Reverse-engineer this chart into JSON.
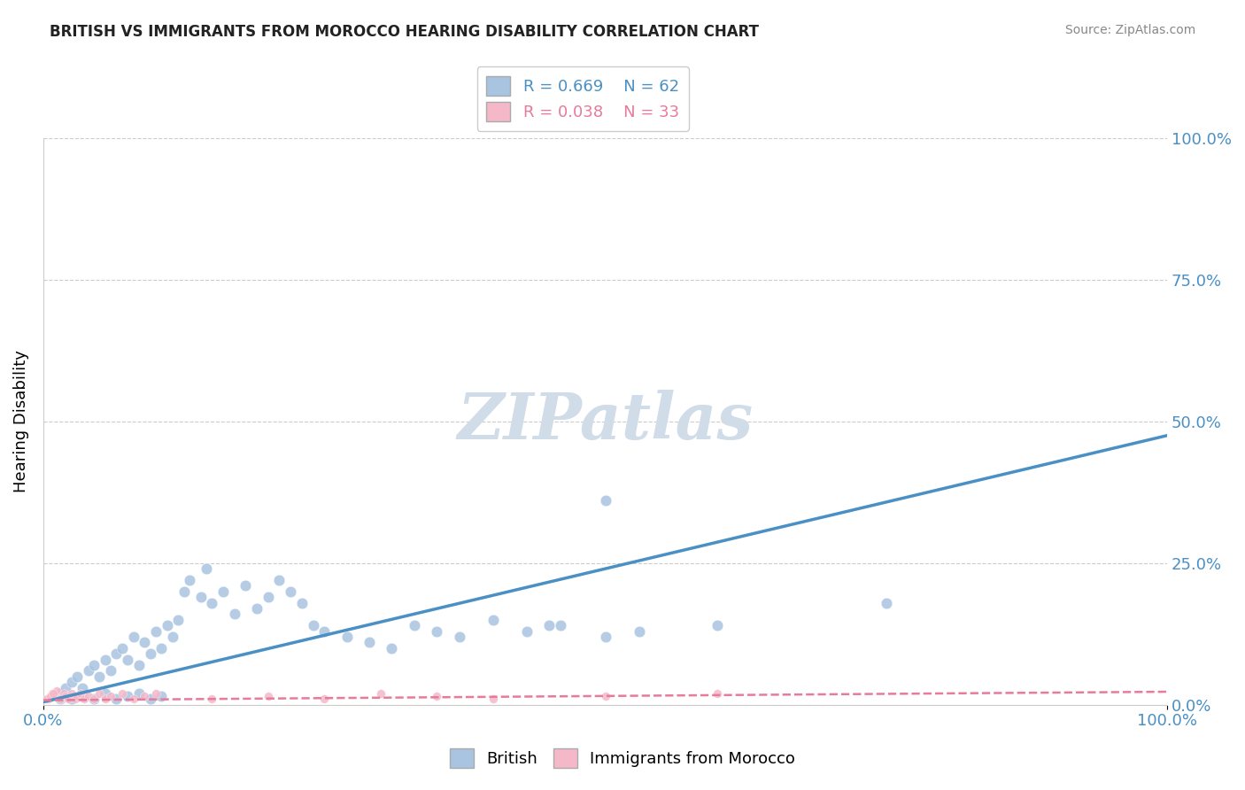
{
  "title": "BRITISH VS IMMIGRANTS FROM MOROCCO HEARING DISABILITY CORRELATION CHART",
  "source": "Source: ZipAtlas.com",
  "ylabel": "Hearing Disability",
  "xlim": [
    0,
    1.0
  ],
  "ylim": [
    0,
    1.0
  ],
  "xtick_labels": [
    "0.0%",
    "100.0%"
  ],
  "ytick_labels": [
    "0.0%",
    "25.0%",
    "50.0%",
    "75.0%",
    "100.0%"
  ],
  "ytick_positions": [
    0.0,
    0.25,
    0.5,
    0.75,
    1.0
  ],
  "british_R": "R = 0.669",
  "british_N": "N = 62",
  "morocco_R": "R = 0.038",
  "morocco_N": "N = 33",
  "british_color": "#a8c4e0",
  "morocco_color": "#f4b8c8",
  "british_line_color": "#4a90c4",
  "morocco_line_color": "#e87a9a",
  "grid_color": "#cccccc",
  "watermark": "ZIPatlas",
  "watermark_color": "#d0dce8",
  "title_color": "#222222",
  "axis_label_color": "#4a90c4",
  "british_points_x": [
    0.015,
    0.02,
    0.025,
    0.03,
    0.035,
    0.04,
    0.045,
    0.05,
    0.055,
    0.06,
    0.065,
    0.07,
    0.075,
    0.08,
    0.085,
    0.09,
    0.095,
    0.1,
    0.105,
    0.11,
    0.115,
    0.12,
    0.125,
    0.13,
    0.14,
    0.145,
    0.15,
    0.16,
    0.17,
    0.18,
    0.19,
    0.2,
    0.21,
    0.22,
    0.23,
    0.24,
    0.25,
    0.27,
    0.29,
    0.31,
    0.33,
    0.35,
    0.37,
    0.4,
    0.43,
    0.46,
    0.5,
    0.5,
    0.53,
    0.6,
    0.015,
    0.025,
    0.035,
    0.045,
    0.055,
    0.065,
    0.075,
    0.085,
    0.095,
    0.105,
    0.75,
    0.45
  ],
  "british_points_y": [
    0.02,
    0.03,
    0.04,
    0.05,
    0.03,
    0.06,
    0.07,
    0.05,
    0.08,
    0.06,
    0.09,
    0.1,
    0.08,
    0.12,
    0.07,
    0.11,
    0.09,
    0.13,
    0.1,
    0.14,
    0.12,
    0.15,
    0.2,
    0.22,
    0.19,
    0.24,
    0.18,
    0.2,
    0.16,
    0.21,
    0.17,
    0.19,
    0.22,
    0.2,
    0.18,
    0.14,
    0.13,
    0.12,
    0.11,
    0.1,
    0.14,
    0.13,
    0.12,
    0.15,
    0.13,
    0.14,
    0.36,
    0.12,
    0.13,
    0.14,
    0.01,
    0.01,
    0.015,
    0.01,
    0.02,
    0.01,
    0.015,
    0.02,
    0.01,
    0.015,
    0.18,
    0.14
  ],
  "morocco_points_x": [
    0.005,
    0.008,
    0.01,
    0.012,
    0.015,
    0.018,
    0.02,
    0.022,
    0.025,
    0.028,
    0.03,
    0.033,
    0.036,
    0.04,
    0.045,
    0.05,
    0.055,
    0.06,
    0.07,
    0.08,
    0.09,
    0.1,
    0.15,
    0.2,
    0.25,
    0.3,
    0.35,
    0.4,
    0.5,
    0.6,
    0.003,
    0.006,
    0.009
  ],
  "morocco_points_y": [
    0.01,
    0.02,
    0.015,
    0.025,
    0.01,
    0.02,
    0.015,
    0.01,
    0.02,
    0.01,
    0.015,
    0.02,
    0.01,
    0.015,
    0.01,
    0.02,
    0.01,
    0.015,
    0.02,
    0.01,
    0.015,
    0.02,
    0.01,
    0.015,
    0.01,
    0.02,
    0.015,
    0.01,
    0.015,
    0.02,
    0.01,
    0.015,
    0.02
  ],
  "british_slope": 0.47,
  "british_intercept": 0.005,
  "morocco_slope": 0.015,
  "morocco_intercept": 0.008
}
